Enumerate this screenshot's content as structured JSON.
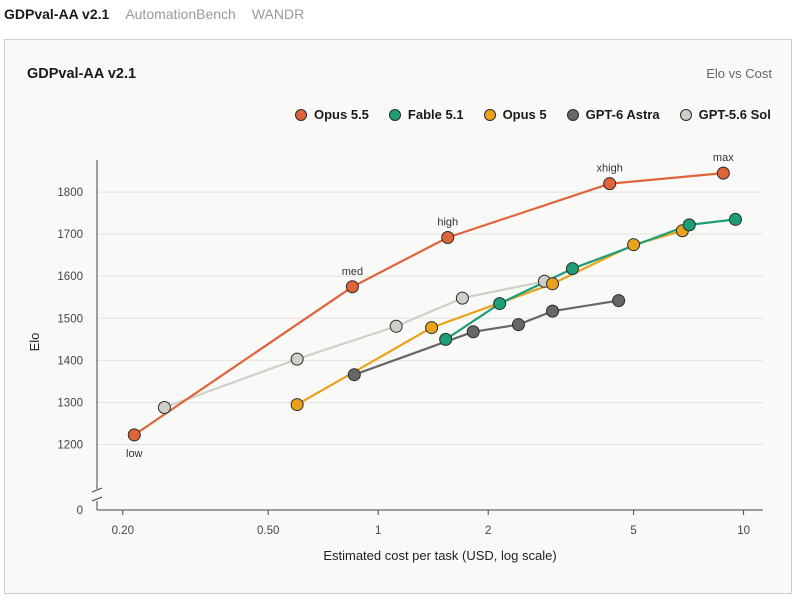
{
  "tabs": [
    {
      "label": "GDPval-AA v2.1",
      "active": true
    },
    {
      "label": "AutomationBench",
      "active": false
    },
    {
      "label": "WANDR",
      "active": false
    }
  ],
  "card": {
    "title": "GDPval-AA v2.1",
    "subtitle": "Elo vs Cost"
  },
  "chart_data": {
    "type": "line",
    "title": "GDPval-AA v2.1",
    "subtitle": "Elo vs Cost",
    "xlabel": "Estimated cost per task (USD, log scale)",
    "ylabel": "Elo",
    "xscale": "log",
    "xlim": [
      0.17,
      11.3
    ],
    "ylim": [
      1130,
      1900
    ],
    "y_axis_break": true,
    "x_ticks": [
      {
        "value": 0.2,
        "label": "0.20"
      },
      {
        "value": 0.5,
        "label": "0.50"
      },
      {
        "value": 1,
        "label": "1"
      },
      {
        "value": 2,
        "label": "2"
      },
      {
        "value": 5,
        "label": "5"
      },
      {
        "value": 10,
        "label": "10"
      }
    ],
    "y_ticks": [
      {
        "value": 1200,
        "label": "1200"
      },
      {
        "value": 1300,
        "label": "1300"
      },
      {
        "value": 1400,
        "label": "1400"
      },
      {
        "value": 1500,
        "label": "1500"
      },
      {
        "value": 1600,
        "label": "1600"
      },
      {
        "value": 1700,
        "label": "1700"
      },
      {
        "value": 1800,
        "label": "1800"
      }
    ],
    "y_zero_label": "0",
    "grid": "horizontal",
    "legend_position": "top-right",
    "series": [
      {
        "name": "Opus 5.5",
        "color": "#e0643a",
        "points": [
          {
            "x": 0.215,
            "y": 1223,
            "label": "low",
            "label_pos": "below"
          },
          {
            "x": 0.85,
            "y": 1575,
            "label": "med",
            "label_pos": "above"
          },
          {
            "x": 1.55,
            "y": 1692,
            "label": "high",
            "label_pos": "above"
          },
          {
            "x": 4.3,
            "y": 1820,
            "label": "xhigh",
            "label_pos": "above"
          },
          {
            "x": 8.8,
            "y": 1845,
            "label": "max",
            "label_pos": "above"
          }
        ]
      },
      {
        "name": "Fable 5.1",
        "color": "#1e9e78",
        "points": [
          {
            "x": 1.53,
            "y": 1450
          },
          {
            "x": 2.15,
            "y": 1535
          },
          {
            "x": 3.4,
            "y": 1618
          },
          {
            "x": 7.1,
            "y": 1722
          },
          {
            "x": 9.5,
            "y": 1735
          }
        ]
      },
      {
        "name": "Opus 5",
        "color": "#e9a21b",
        "points": [
          {
            "x": 0.6,
            "y": 1295
          },
          {
            "x": 1.4,
            "y": 1478
          },
          {
            "x": 3.0,
            "y": 1582
          },
          {
            "x": 5.0,
            "y": 1675
          },
          {
            "x": 6.8,
            "y": 1708
          }
        ]
      },
      {
        "name": "GPT-6 Astra",
        "color": "#676767",
        "points": [
          {
            "x": 0.86,
            "y": 1366
          },
          {
            "x": 1.82,
            "y": 1468
          },
          {
            "x": 2.42,
            "y": 1485
          },
          {
            "x": 3.0,
            "y": 1517
          },
          {
            "x": 4.55,
            "y": 1542
          }
        ]
      },
      {
        "name": "GPT-5.6 Sol",
        "color": "#cfcfca",
        "points": [
          {
            "x": 0.26,
            "y": 1288
          },
          {
            "x": 0.6,
            "y": 1403
          },
          {
            "x": 1.12,
            "y": 1481
          },
          {
            "x": 1.7,
            "y": 1548
          },
          {
            "x": 2.85,
            "y": 1588
          }
        ]
      }
    ]
  }
}
